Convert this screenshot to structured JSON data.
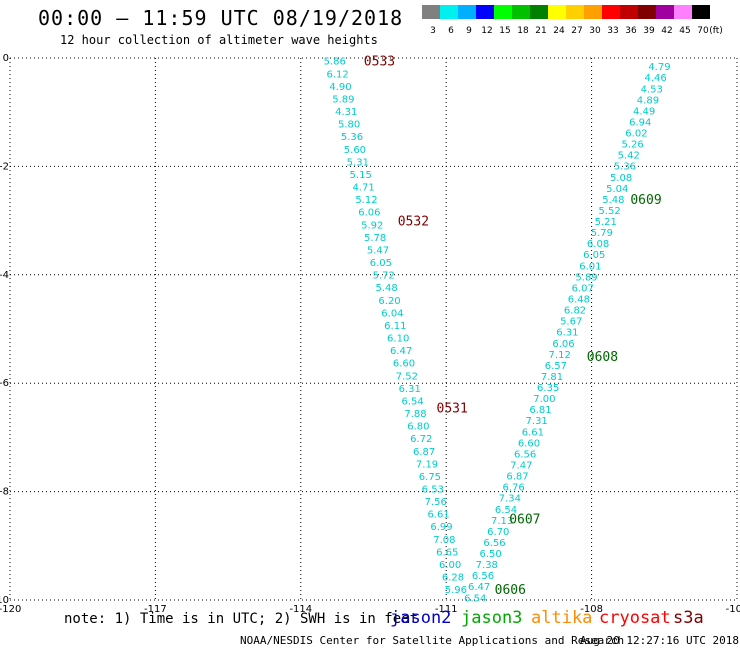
{
  "header": {
    "title": "00:00 – 11:59 UTC 08/19/2018",
    "subtitle": "12 hour collection of altimeter wave heights"
  },
  "colorbar": {
    "unit": "(ft)",
    "bins": [
      {
        "label": "3",
        "color": "#808080"
      },
      {
        "label": "6",
        "color": "#00f0f0"
      },
      {
        "label": "9",
        "color": "#00b0ff"
      },
      {
        "label": "12",
        "color": "#0000ff"
      },
      {
        "label": "15",
        "color": "#00ff00"
      },
      {
        "label": "18",
        "color": "#00c000"
      },
      {
        "label": "21",
        "color": "#008000"
      },
      {
        "label": "24",
        "color": "#ffff00"
      },
      {
        "label": "27",
        "color": "#ffd000"
      },
      {
        "label": "30",
        "color": "#ffa000"
      },
      {
        "label": "33",
        "color": "#ff0000"
      },
      {
        "label": "36",
        "color": "#c00000"
      },
      {
        "label": "39",
        "color": "#800000"
      },
      {
        "label": "42",
        "color": "#a000a0"
      },
      {
        "label": "45",
        "color": "#ff80ff"
      },
      {
        "label": "70",
        "color": "#000000"
      }
    ]
  },
  "axes": {
    "lon_min": -120,
    "lon_max": -105,
    "lat_min": -10,
    "lat_max": 0,
    "lon_ticks": [
      "-120",
      "-117",
      "-114",
      "-111",
      "-108",
      "-105"
    ],
    "lat_ticks": [
      "0",
      "-2",
      "-4",
      "-6",
      "-8",
      "-10"
    ],
    "grid": "dotted"
  },
  "tracks": [
    {
      "satellite": "jason3",
      "color": "#00cccc",
      "start": {
        "lon": -113.3,
        "lat": -0.05
      },
      "end": {
        "lon": -110.8,
        "lat": -9.8
      },
      "values": [
        "5.86",
        "6.12",
        "4.90",
        "5.89",
        "4.31",
        "5.80",
        "5.36",
        "5.60",
        "5.31",
        "5.15",
        "4.71",
        "5.12",
        "6.06",
        "5.92",
        "5.78",
        "5.47",
        "6.05",
        "5.72",
        "5.48",
        "6.20",
        "6.04",
        "6.11",
        "6.10",
        "6.47",
        "6.60",
        "7.52",
        "6.31",
        "6.54",
        "7.88",
        "6.80",
        "6.72",
        "6.87",
        "7.19",
        "6.75",
        "6.53",
        "7.56",
        "6.61",
        "6.99",
        "7.08",
        "6.65",
        "6.00",
        "6.28",
        "5.96"
      ]
    },
    {
      "satellite": "jason3",
      "color": "#00cccc",
      "start": {
        "lon": -106.6,
        "lat": -0.15
      },
      "end": {
        "lon": -110.4,
        "lat": -9.95
      },
      "values": [
        "4.79",
        "4.46",
        "4.53",
        "4.89",
        "4.49",
        "6.94",
        "6.02",
        "5.26",
        "5.42",
        "5.36",
        "5.08",
        "5.04",
        "5.48",
        "5.52",
        "5.21",
        "5.79",
        "6.08",
        "6.05",
        "6.01",
        "5.89",
        "6.07",
        "6.48",
        "6.82",
        "5.67",
        "6.31",
        "6.06",
        "7.12",
        "6.57",
        "7.81",
        "6.35",
        "7.00",
        "6.81",
        "7.31",
        "6.61",
        "6.60",
        "6.56",
        "7.47",
        "6.87",
        "6.76",
        "7.34",
        "6.54",
        "7.13",
        "6.70",
        "6.56",
        "6.50",
        "7.38",
        "6.56",
        "6.47",
        "6.54"
      ]
    }
  ],
  "time_labels": [
    {
      "text": "0533",
      "lon": -112.7,
      "lat": -0.05,
      "color": "#800000"
    },
    {
      "text": "0532",
      "lon": -112.0,
      "lat": -3.0,
      "color": "#800000"
    },
    {
      "text": "0531",
      "lon": -111.2,
      "lat": -6.45,
      "color": "#800000"
    },
    {
      "text": "0609",
      "lon": -107.2,
      "lat": -2.6,
      "color": "#006600"
    },
    {
      "text": "0608",
      "lon": -108.1,
      "lat": -5.5,
      "color": "#006600"
    },
    {
      "text": "0607",
      "lon": -109.7,
      "lat": -8.5,
      "color": "#006600"
    },
    {
      "text": "0606",
      "lon": -110.0,
      "lat": -9.8,
      "color": "#006600"
    }
  ],
  "footer": {
    "note": "note: 1) Time is in UTC; 2) SWH is in feet",
    "satellites": [
      {
        "name": "jason2",
        "color": "#0000cc"
      },
      {
        "name": "jason3",
        "color": "#00aa00"
      },
      {
        "name": "altika",
        "color": "#ff8c00"
      },
      {
        "name": "cryosat",
        "color": "#ff0000"
      },
      {
        "name": "s3a",
        "color": "#800000"
      }
    ],
    "credit": "NOAA/NESDIS Center for Satellite Applications and Research",
    "timestamp": "Aug 20 12:27:16 UTC 2018"
  }
}
